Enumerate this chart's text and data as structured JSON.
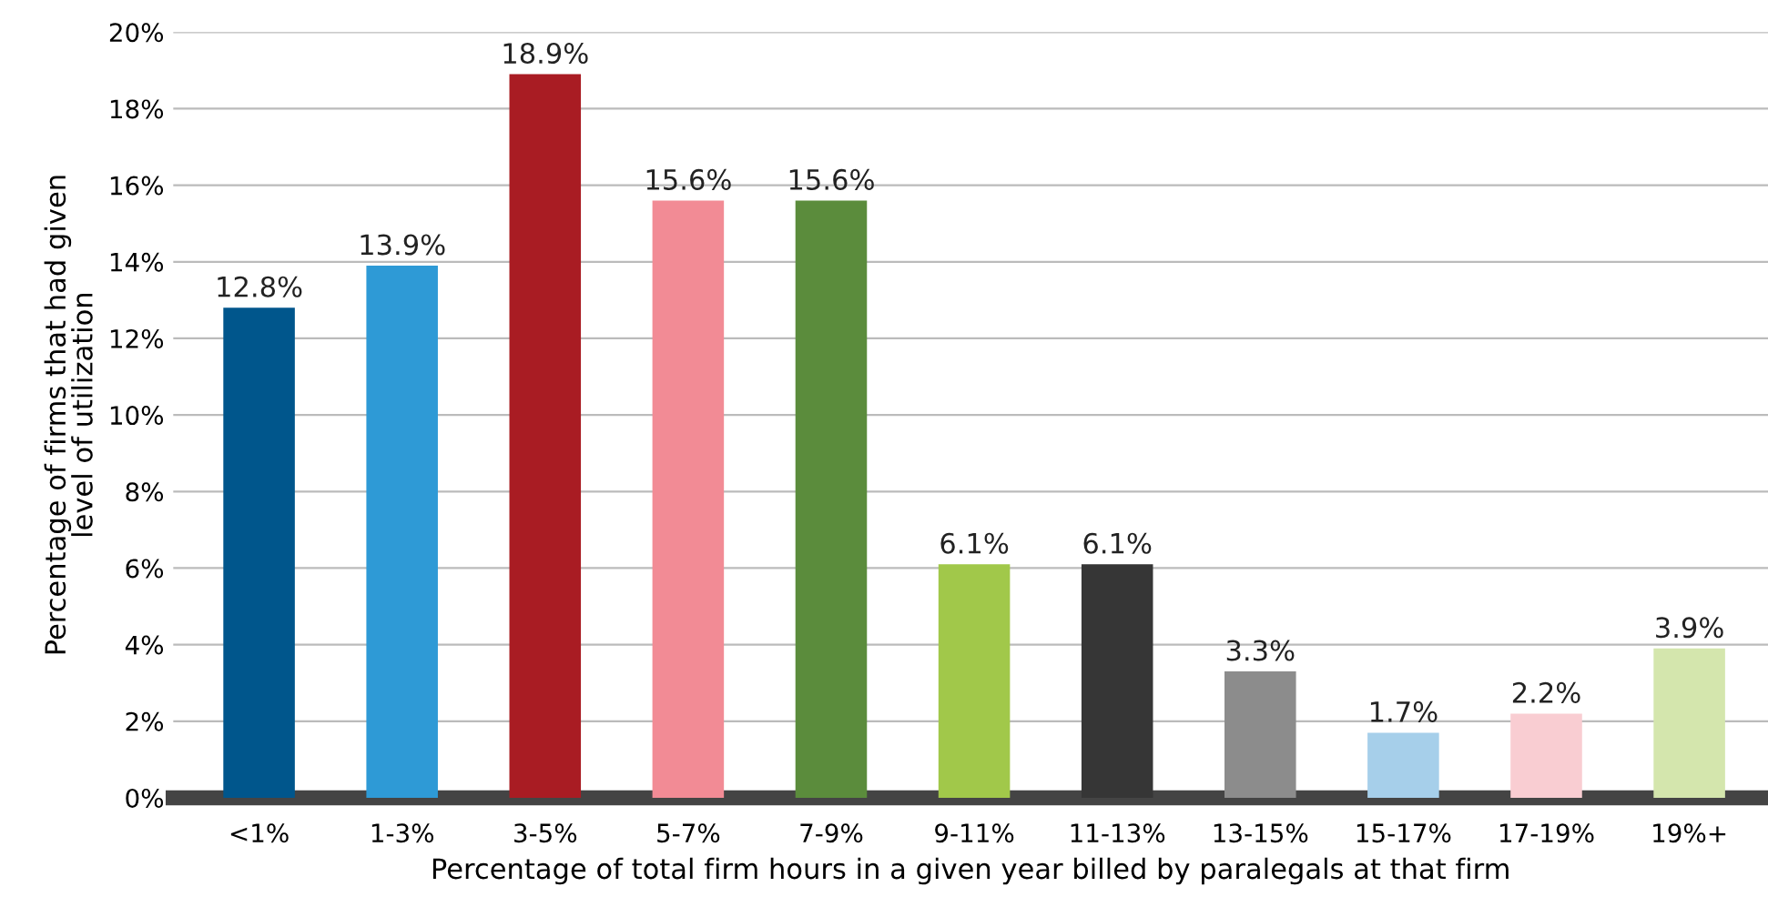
{
  "chart_data": {
    "type": "bar",
    "xlabel": "Percentage of total firm hours in a given year billed by paralegals at that firm",
    "ylabel": "Percentage of firms that had given\nlevel of utilization",
    "categories": [
      "<1%",
      "1-3%",
      "3-5%",
      "5-7%",
      "7-9%",
      "9-11%",
      "11-13%",
      "13-15%",
      "15-17%",
      "17-19%",
      "19%+"
    ],
    "values": [
      12.8,
      13.9,
      18.9,
      15.6,
      15.6,
      6.1,
      6.1,
      3.3,
      1.7,
      2.2,
      3.9
    ],
    "value_labels": [
      "12.8%",
      "13.9%",
      "18.9%",
      "15.6%",
      "15.6%",
      "6.1%",
      "6.1%",
      "3.3%",
      "1.7%",
      "2.2%",
      "3.9%"
    ],
    "colors": [
      "#00568c",
      "#2e9ad6",
      "#a91c23",
      "#f28b95",
      "#5b8c3c",
      "#a1c84a",
      "#363636",
      "#8c8c8c",
      "#a6cfea",
      "#f9cdd2",
      "#d4e6ad"
    ],
    "ylim": [
      0,
      20
    ],
    "yticks": [
      {
        "value": 0,
        "label": "0%"
      },
      {
        "value": 2,
        "label": "2%"
      },
      {
        "value": 4,
        "label": "4%"
      },
      {
        "value": 6,
        "label": "6%"
      },
      {
        "value": 8,
        "label": "8%"
      },
      {
        "value": 10,
        "label": "10%"
      },
      {
        "value": 12,
        "label": "12%"
      },
      {
        "value": 14,
        "label": "14%"
      },
      {
        "value": 16,
        "label": "16%"
      },
      {
        "value": 18,
        "label": "18%"
      },
      {
        "value": 20,
        "label": "20%"
      }
    ],
    "grid": "y"
  }
}
